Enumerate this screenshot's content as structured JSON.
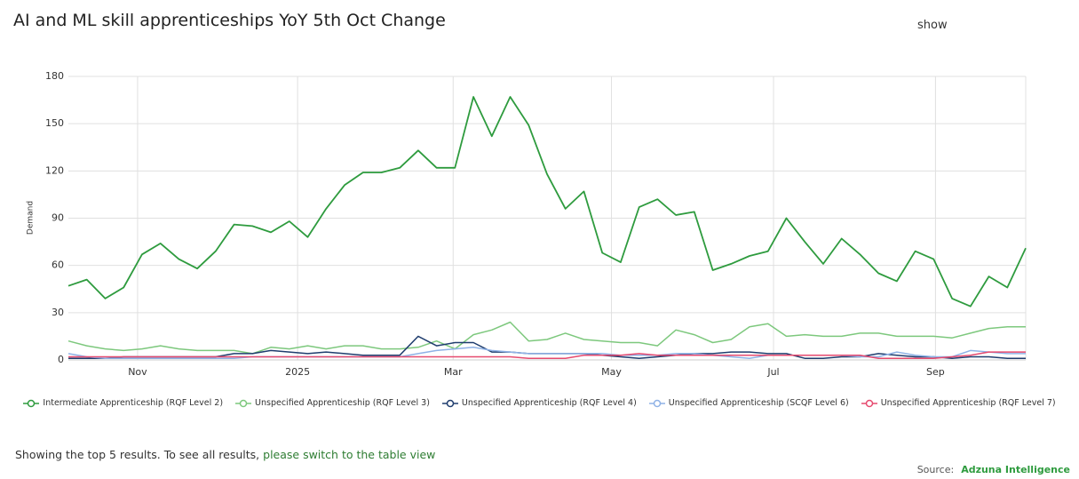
{
  "header": {
    "show": "show"
  },
  "chart_data": {
    "type": "line",
    "title": "AI and ML skill apprenticeships YoY 5th Oct Change",
    "y_label": "Demand",
    "categories": [
      null,
      null,
      null,
      null,
      null,
      null,
      null,
      null,
      null,
      null,
      null,
      null,
      null,
      null,
      null,
      null,
      null,
      null,
      null,
      null,
      null,
      null,
      null,
      null,
      null,
      null,
      null,
      null,
      null,
      null,
      null,
      null,
      null,
      null,
      null,
      null,
      null,
      null,
      null,
      null,
      null,
      null,
      null,
      null,
      null,
      null,
      null,
      null,
      null,
      null,
      null,
      null,
      null
    ],
    "xlim": [
      0,
      52
    ],
    "xticks": [
      {
        "value": 3.76,
        "label": "Nov"
      },
      {
        "value": 12.45,
        "label": "2025"
      },
      {
        "value": 20.9,
        "label": "Mar"
      },
      {
        "value": 29.5,
        "label": "May"
      },
      {
        "value": 38.3,
        "label": "Jul"
      },
      {
        "value": 47.1,
        "label": "Sep"
      }
    ],
    "ylim": [
      0,
      180
    ],
    "yticks": [
      0,
      30,
      60,
      90,
      120,
      150,
      180
    ],
    "grid": true,
    "legend": "bottom",
    "series": [
      {
        "name": "Intermediate Apprenticeship (RQF Level 2)",
        "color": "#2e9b3e",
        "values": [
          47,
          51,
          39,
          46,
          67,
          74,
          64,
          58,
          69,
          86,
          85,
          81,
          88,
          78,
          96,
          111,
          119,
          119,
          122,
          133,
          122,
          122,
          167,
          142,
          167,
          149,
          118,
          96,
          107,
          68,
          62,
          97,
          102,
          92,
          94,
          57,
          61,
          66,
          69,
          90,
          75,
          61,
          77,
          67,
          55,
          50,
          69,
          64,
          39,
          34,
          53,
          46,
          71
        ]
      },
      {
        "name": "Unspecified Apprenticeship (RQF Level 3)",
        "color": "#7dc87d",
        "values": [
          12,
          9,
          7,
          6,
          7,
          9,
          7,
          6,
          6,
          6,
          4,
          8,
          7,
          9,
          7,
          9,
          9,
          7,
          7,
          8,
          12,
          7,
          16,
          19,
          24,
          12,
          13,
          17,
          13,
          12,
          11,
          11,
          9,
          19,
          16,
          11,
          13,
          21,
          23,
          15,
          16,
          15,
          15,
          17,
          17,
          15,
          15,
          15,
          14,
          17,
          20,
          21,
          21
        ]
      },
      {
        "name": "Unspecified Apprenticeship (RQF Level 4)",
        "color": "#1f3d6e",
        "values": [
          1,
          1,
          1,
          2,
          2,
          2,
          2,
          2,
          2,
          4,
          4,
          6,
          5,
          4,
          5,
          4,
          3,
          3,
          3,
          15,
          9,
          11,
          11,
          5,
          5,
          4,
          4,
          4,
          4,
          3,
          2,
          1,
          2,
          3,
          4,
          4,
          5,
          5,
          4,
          4,
          1,
          1,
          2,
          2,
          4,
          3,
          2,
          2,
          1,
          2,
          2,
          1,
          1
        ]
      },
      {
        "name": "Unspecified Apprenticeship (SCQF Level 6)",
        "color": "#8fb2e6",
        "values": [
          4,
          2,
          1,
          1,
          1,
          1,
          1,
          1,
          1,
          1,
          2,
          2,
          2,
          2,
          2,
          2,
          2,
          2,
          2,
          4,
          6,
          7,
          8,
          6,
          5,
          4,
          4,
          4,
          4,
          4,
          3,
          3,
          3,
          4,
          4,
          3,
          2,
          1,
          3,
          3,
          3,
          3,
          3,
          2,
          2,
          5,
          3,
          2,
          2,
          6,
          5,
          4,
          4
        ]
      },
      {
        "name": "Unspecified Apprenticeship (RQF Level 7)",
        "color": "#e64a6f",
        "values": [
          2,
          2,
          2,
          2,
          2,
          2,
          2,
          2,
          2,
          2,
          2,
          2,
          2,
          2,
          2,
          2,
          2,
          2,
          2,
          2,
          2,
          2,
          2,
          2,
          2,
          1,
          1,
          1,
          3,
          3,
          3,
          4,
          3,
          3,
          3,
          3,
          3,
          3,
          3,
          3,
          3,
          3,
          3,
          3,
          1,
          1,
          1,
          1,
          2,
          3,
          5,
          5,
          5
        ]
      }
    ]
  },
  "footer": {
    "note": "Showing the top 5 results. To see all results,",
    "link": "please switch to the table view",
    "source_label": "Source:",
    "source": "Adzuna Intelligence"
  }
}
